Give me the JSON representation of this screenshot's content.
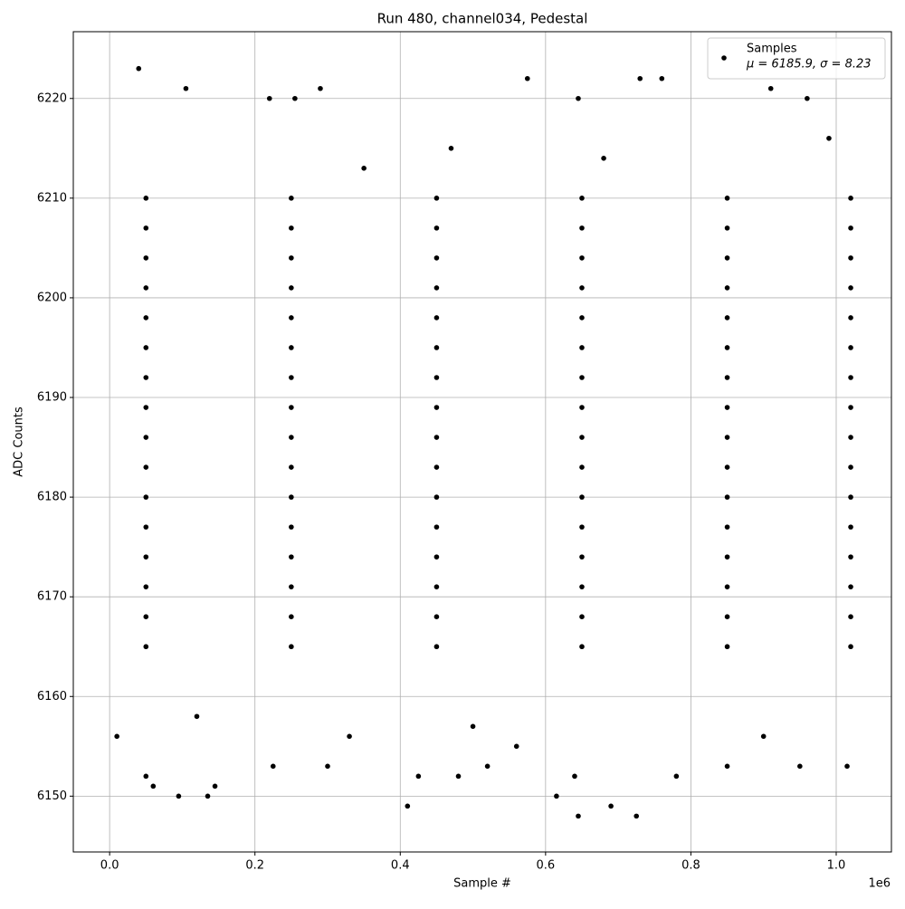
{
  "chart_data": {
    "type": "scatter",
    "title": "Run 480, channel034, Pedestal",
    "x_label": "Sample #",
    "y_label": "ADC Counts",
    "x_offset_label": "1e6",
    "xlim": [
      -50000,
      1076000
    ],
    "ylim": [
      6144.4,
      6226.7
    ],
    "xticks": [
      {
        "value": 0,
        "label": "0.0"
      },
      {
        "value": 200000,
        "label": "0.2"
      },
      {
        "value": 400000,
        "label": "0.4"
      },
      {
        "value": 600000,
        "label": "0.6"
      },
      {
        "value": 800000,
        "label": "0.8"
      },
      {
        "value": 1000000,
        "label": "1.0"
      }
    ],
    "yticks": [
      6150,
      6160,
      6170,
      6180,
      6190,
      6200,
      6210,
      6220
    ],
    "grid": true,
    "legend_position": "upper right",
    "legend_stats": "μ = 6185.9, σ = 8.23",
    "series": [
      {
        "name": "Samples",
        "color": "#000000",
        "x": [
          50000,
          250000,
          450000,
          650000,
          850000,
          1020000,
          50000,
          250000,
          450000,
          650000,
          850000,
          1020000,
          50000,
          250000,
          450000,
          650000,
          850000,
          1020000,
          50000,
          250000,
          450000,
          650000,
          850000,
          1020000,
          50000,
          250000,
          450000,
          650000,
          850000,
          1020000,
          50000,
          250000,
          450000,
          650000,
          850000,
          1020000,
          50000,
          250000,
          450000,
          650000,
          850000,
          1020000,
          50000,
          250000,
          450000,
          650000,
          850000,
          1020000,
          50000,
          250000,
          450000,
          650000,
          850000,
          1020000,
          50000,
          250000,
          450000,
          650000,
          850000,
          1020000,
          50000,
          250000,
          450000,
          650000,
          850000,
          1020000,
          50000,
          250000,
          450000,
          650000,
          850000,
          1020000,
          50000,
          250000,
          450000,
          650000,
          850000,
          1020000,
          50000,
          250000,
          450000,
          650000,
          850000,
          1020000,
          50000,
          250000,
          450000,
          650000,
          850000,
          1020000,
          50000,
          250000,
          450000,
          650000,
          850000,
          1020000,
          40000,
          575000,
          730000,
          760000,
          290000,
          105000,
          910000,
          220000,
          255000,
          645000,
          960000,
          410000,
          645000,
          725000,
          690000,
          615000,
          95000,
          135000,
          60000,
          145000,
          50000,
          425000,
          480000,
          640000,
          780000,
          225000,
          300000,
          520000,
          950000,
          1015000,
          10000,
          330000,
          560000,
          850000,
          120000,
          500000,
          900000,
          350000,
          470000,
          680000,
          990000
        ],
        "y": [
          6165,
          6165,
          6165,
          6165,
          6165,
          6165,
          6168,
          6168,
          6168,
          6168,
          6168,
          6168,
          6171,
          6171,
          6171,
          6171,
          6171,
          6171,
          6174,
          6174,
          6174,
          6174,
          6174,
          6174,
          6177,
          6177,
          6177,
          6177,
          6177,
          6177,
          6180,
          6180,
          6180,
          6180,
          6180,
          6180,
          6183,
          6183,
          6183,
          6183,
          6183,
          6183,
          6186,
          6186,
          6186,
          6186,
          6186,
          6186,
          6189,
          6189,
          6189,
          6189,
          6189,
          6189,
          6192,
          6192,
          6192,
          6192,
          6192,
          6192,
          6195,
          6195,
          6195,
          6195,
          6195,
          6195,
          6198,
          6198,
          6198,
          6198,
          6198,
          6198,
          6201,
          6201,
          6201,
          6201,
          6201,
          6201,
          6204,
          6204,
          6204,
          6204,
          6204,
          6204,
          6207,
          6207,
          6207,
          6207,
          6207,
          6207,
          6210,
          6210,
          6210,
          6210,
          6210,
          6210,
          6223,
          6222,
          6222,
          6222,
          6221,
          6221,
          6221,
          6220,
          6220,
          6220,
          6220,
          6149,
          6148,
          6148,
          6149,
          6150,
          6150,
          6150,
          6151,
          6151,
          6152,
          6152,
          6152,
          6152,
          6152,
          6153,
          6153,
          6153,
          6153,
          6153,
          6156,
          6156,
          6155,
          6153,
          6158,
          6157,
          6156,
          6213,
          6215,
          6214,
          6216
        ]
      }
    ]
  }
}
